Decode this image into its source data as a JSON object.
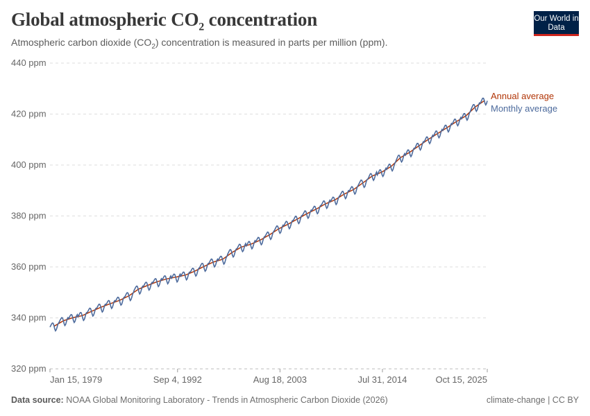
{
  "header": {
    "title_main": "Global atmospheric CO",
    "title_sub": "2",
    "title_end": " concentration",
    "subtitle_a": "Atmospheric carbon dioxide (CO",
    "subtitle_sub": "2",
    "subtitle_b": ") concentration is measured in parts per million (ppm).",
    "logo": "Our World in Data"
  },
  "footer": {
    "source_label": "Data source:",
    "source_text": "NOAA Global Monitoring Laboratory - Trends in Atmospheric Carbon Dioxide (2026)",
    "license": "climate-change | CC BY"
  },
  "colors": {
    "annual": "#b13507",
    "monthly": "#4c6a9c",
    "grid": "#dddddd",
    "text": "#666666",
    "logo_bg": "#002147",
    "logo_accent": "#ce261e"
  },
  "chart_data": {
    "type": "line",
    "title": "Global atmospheric CO₂ concentration",
    "ylabel": "",
    "xlabel": "",
    "ylim": [
      320,
      440
    ],
    "yticks": [
      320,
      340,
      360,
      380,
      400,
      420,
      440
    ],
    "ytick_labels": [
      "320 ppm",
      "340 ppm",
      "360 ppm",
      "380 ppm",
      "400 ppm",
      "420 ppm",
      "440 ppm"
    ],
    "xlim": [
      "1979-01-15",
      "2025-10-15"
    ],
    "xticks": [
      {
        "date": "1979-01-15",
        "label": "Jan 15, 1979"
      },
      {
        "date": "1992-09-04",
        "label": "Sep 4, 1992"
      },
      {
        "date": "2003-08-18",
        "label": "Aug 18, 2003"
      },
      {
        "date": "2014-07-31",
        "label": "Jul 31, 2014"
      },
      {
        "date": "2025-10-15",
        "label": "Oct 15, 2025"
      }
    ],
    "grid": true,
    "legend": "right (line-end labels)",
    "series": [
      {
        "name": "Annual average",
        "color": "#b13507",
        "years": [
          1979,
          1980,
          1981,
          1982,
          1983,
          1984,
          1985,
          1986,
          1987,
          1988,
          1989,
          1990,
          1991,
          1992,
          1993,
          1994,
          1995,
          1996,
          1997,
          1998,
          1999,
          2000,
          2001,
          2002,
          2003,
          2004,
          2005,
          2006,
          2007,
          2008,
          2009,
          2010,
          2011,
          2012,
          2013,
          2014,
          2015,
          2016,
          2017,
          2018,
          2019,
          2020,
          2021,
          2022,
          2023,
          2024,
          2025
        ],
        "values": [
          336.8,
          338.9,
          340.1,
          340.9,
          342.6,
          344.2,
          345.6,
          346.9,
          348.7,
          351.3,
          352.8,
          354.2,
          355.3,
          356.0,
          356.8,
          358.3,
          360.2,
          361.9,
          363.0,
          365.7,
          367.8,
          368.9,
          370.5,
          372.6,
          375.0,
          376.8,
          378.8,
          380.9,
          382.7,
          384.8,
          386.3,
          388.6,
          390.4,
          393.0,
          395.7,
          397.2,
          399.4,
          402.9,
          405.0,
          407.6,
          410.1,
          412.4,
          414.7,
          417.1,
          419.3,
          422.8,
          425.3
        ]
      },
      {
        "name": "Monthly average",
        "color": "#4c6a9c",
        "monthly": [
          {
            "year": 1979,
            "values": [
              336.4,
              337.0,
              337.6,
              338.0,
              337.9,
              337.0,
              335.7,
              334.9,
              335.3,
              336.3,
              337.5,
              338.0
            ]
          },
          {
            "year": 1980,
            "values": [
              338.5,
              339.1,
              339.7,
              340.1,
              340.0,
              339.1,
              337.8,
              337.0,
              337.4,
              338.4,
              339.6,
              340.1
            ]
          },
          {
            "year": 1981,
            "values": [
              339.7,
              340.3,
              340.9,
              341.3,
              341.2,
              340.3,
              339.0,
              338.2,
              338.6,
              339.6,
              340.8,
              341.3
            ]
          },
          {
            "year": 1982,
            "values": [
              340.5,
              341.1,
              341.7,
              342.1,
              342.0,
              341.1,
              339.8,
              339.0,
              339.4,
              340.4,
              341.6,
              342.1
            ]
          },
          {
            "year": 1983,
            "values": [
              342.2,
              342.8,
              343.4,
              343.8,
              343.7,
              342.8,
              341.5,
              340.7,
              341.1,
              342.1,
              343.3,
              343.8
            ]
          },
          {
            "year": 1984,
            "values": [
              343.8,
              344.4,
              345.0,
              345.4,
              345.3,
              344.4,
              343.1,
              342.3,
              342.7,
              343.7,
              344.9,
              345.4
            ]
          },
          {
            "year": 1985,
            "values": [
              345.2,
              345.8,
              346.4,
              346.8,
              346.7,
              345.8,
              344.5,
              343.7,
              344.1,
              345.1,
              346.3,
              346.8
            ]
          },
          {
            "year": 1986,
            "values": [
              346.5,
              347.1,
              347.7,
              348.1,
              348.0,
              347.1,
              345.8,
              345.0,
              345.4,
              346.4,
              347.6,
              348.1
            ]
          },
          {
            "year": 1987,
            "values": [
              348.3,
              348.9,
              349.5,
              349.9,
              349.8,
              348.9,
              347.6,
              346.8,
              347.2,
              348.2,
              349.4,
              349.9
            ]
          },
          {
            "year": 1988,
            "values": [
              350.9,
              351.5,
              352.1,
              352.5,
              352.4,
              351.5,
              350.2,
              349.4,
              349.8,
              350.8,
              352.0,
              352.5
            ]
          },
          {
            "year": 1989,
            "values": [
              352.4,
              353.0,
              353.6,
              354.0,
              353.9,
              353.0,
              351.7,
              350.9,
              351.3,
              352.3,
              353.5,
              354.0
            ]
          },
          {
            "year": 1990,
            "values": [
              353.8,
              354.4,
              355.0,
              355.4,
              355.3,
              354.4,
              353.1,
              352.3,
              352.7,
              353.7,
              354.9,
              355.4
            ]
          },
          {
            "year": 1991,
            "values": [
              354.9,
              355.5,
              356.1,
              356.5,
              356.4,
              355.5,
              354.2,
              353.4,
              353.8,
              354.8,
              356.0,
              356.5
            ]
          },
          {
            "year": 1992,
            "values": [
              355.6,
              356.2,
              356.8,
              357.2,
              357.1,
              356.2,
              354.9,
              354.1,
              354.5,
              355.5,
              356.7,
              357.2
            ]
          },
          {
            "year": 1993,
            "values": [
              356.4,
              357.0,
              357.6,
              358.0,
              357.9,
              357.0,
              355.7,
              354.9,
              355.3,
              356.3,
              357.5,
              358.0
            ]
          },
          {
            "year": 1994,
            "values": [
              357.9,
              358.5,
              359.1,
              359.5,
              359.4,
              358.5,
              357.2,
              356.4,
              356.8,
              357.8,
              359.0,
              359.5
            ]
          },
          {
            "year": 1995,
            "values": [
              359.8,
              360.4,
              361.0,
              361.4,
              361.3,
              360.4,
              359.1,
              358.3,
              358.7,
              359.7,
              360.9,
              361.4
            ]
          },
          {
            "year": 1996,
            "values": [
              361.5,
              362.1,
              362.7,
              363.1,
              363.0,
              362.1,
              360.8,
              360.0,
              360.4,
              361.4,
              362.6,
              363.1
            ]
          },
          {
            "year": 1997,
            "values": [
              362.6,
              363.2,
              363.8,
              364.2,
              364.1,
              363.2,
              361.9,
              361.1,
              361.5,
              362.5,
              363.7,
              364.2
            ]
          },
          {
            "year": 1998,
            "values": [
              365.1,
              365.7,
              366.3,
              366.8,
              366.7,
              365.9,
              364.6,
              363.9,
              364.3,
              365.4,
              366.5,
              367.1
            ]
          },
          {
            "year": 1999,
            "values": [
              367.2,
              367.8,
              368.4,
              368.9,
              368.8,
              368.0,
              366.7,
              366.0,
              366.4,
              367.5,
              368.6,
              369.2
            ]
          },
          {
            "year": 2000,
            "values": [
              368.3,
              368.9,
              369.5,
              370.0,
              369.9,
              369.1,
              367.8,
              367.1,
              367.5,
              368.6,
              369.7,
              370.3
            ]
          },
          {
            "year": 2001,
            "values": [
              369.9,
              370.5,
              371.1,
              371.6,
              371.5,
              370.7,
              369.4,
              368.7,
              369.1,
              370.2,
              371.3,
              371.9
            ]
          },
          {
            "year": 2002,
            "values": [
              372.0,
              372.6,
              373.2,
              373.7,
              373.6,
              372.8,
              371.5,
              370.8,
              371.2,
              372.3,
              373.4,
              374.0
            ]
          },
          {
            "year": 2003,
            "values": [
              374.4,
              375.0,
              375.6,
              376.1,
              376.0,
              375.2,
              373.9,
              373.2,
              373.6,
              374.7,
              375.8,
              376.4
            ]
          },
          {
            "year": 2004,
            "values": [
              376.2,
              376.8,
              377.4,
              377.9,
              377.8,
              377.0,
              375.7,
              375.0,
              375.4,
              376.5,
              377.6,
              378.2
            ]
          },
          {
            "year": 2005,
            "values": [
              378.2,
              378.8,
              379.4,
              379.9,
              379.8,
              379.0,
              377.7,
              377.0,
              377.4,
              378.5,
              379.6,
              380.2
            ]
          },
          {
            "year": 2006,
            "values": [
              380.3,
              380.9,
              381.5,
              382.0,
              381.9,
              381.1,
              379.8,
              379.1,
              379.5,
              380.6,
              381.7,
              382.3
            ]
          },
          {
            "year": 2007,
            "values": [
              382.1,
              382.7,
              383.3,
              383.8,
              383.7,
              382.9,
              381.6,
              380.9,
              381.3,
              382.4,
              383.5,
              384.1
            ]
          },
          {
            "year": 2008,
            "values": [
              384.2,
              384.8,
              385.4,
              385.9,
              385.8,
              385.0,
              383.7,
              383.0,
              383.4,
              384.5,
              385.6,
              386.2
            ]
          },
          {
            "year": 2009,
            "values": [
              385.7,
              386.3,
              386.9,
              387.4,
              387.3,
              386.5,
              385.2,
              384.5,
              384.9,
              386.0,
              387.1,
              387.7
            ]
          },
          {
            "year": 2010,
            "values": [
              388.0,
              388.6,
              389.2,
              389.7,
              389.6,
              388.8,
              387.5,
              386.8,
              387.2,
              388.3,
              389.4,
              390.0
            ]
          },
          {
            "year": 2011,
            "values": [
              389.8,
              390.4,
              391.0,
              391.5,
              391.4,
              390.6,
              389.3,
              388.6,
              389.0,
              390.1,
              391.2,
              391.8
            ]
          },
          {
            "year": 2012,
            "values": [
              392.4,
              393.0,
              393.6,
              394.1,
              394.0,
              393.2,
              391.9,
              391.2,
              391.6,
              392.7,
              393.8,
              394.4
            ]
          },
          {
            "year": 2013,
            "values": [
              394.6,
              395.3,
              396.0,
              396.6,
              396.6,
              395.9,
              394.6,
              394.0,
              394.5,
              395.6,
              396.7,
              397.3
            ]
          },
          {
            "year": 2014,
            "values": [
              396.1,
              396.8,
              397.5,
              398.1,
              398.1,
              397.4,
              396.1,
              395.5,
              396.0,
              397.1,
              398.2,
              398.8
            ]
          },
          {
            "year": 2015,
            "values": [
              398.3,
              399.0,
              399.7,
              400.3,
              400.3,
              399.6,
              398.3,
              397.7,
              398.2,
              399.3,
              400.4,
              401.0
            ]
          },
          {
            "year": 2016,
            "values": [
              401.8,
              402.5,
              403.2,
              403.8,
              403.8,
              403.1,
              401.8,
              401.2,
              401.7,
              402.8,
              403.9,
              404.5
            ]
          },
          {
            "year": 2017,
            "values": [
              403.9,
              404.6,
              405.3,
              405.9,
              405.9,
              405.2,
              403.9,
              403.3,
              403.8,
              404.9,
              406.0,
              406.6
            ]
          },
          {
            "year": 2018,
            "values": [
              406.5,
              407.2,
              407.9,
              408.5,
              408.5,
              407.8,
              406.5,
              405.9,
              406.4,
              407.5,
              408.6,
              409.2
            ]
          },
          {
            "year": 2019,
            "values": [
              409.0,
              409.7,
              410.4,
              411.0,
              411.0,
              410.3,
              409.0,
              408.4,
              408.9,
              410.0,
              411.1,
              411.7
            ]
          },
          {
            "year": 2020,
            "values": [
              411.3,
              412.0,
              412.7,
              413.3,
              413.3,
              412.6,
              411.3,
              410.7,
              411.2,
              412.3,
              413.4,
              414.0
            ]
          },
          {
            "year": 2021,
            "values": [
              413.6,
              414.3,
              415.0,
              415.6,
              415.6,
              414.9,
              413.6,
              413.0,
              413.5,
              414.6,
              415.7,
              416.3
            ]
          },
          {
            "year": 2022,
            "values": [
              416.0,
              416.7,
              417.4,
              418.0,
              418.0,
              417.3,
              416.0,
              415.4,
              415.9,
              417.0,
              418.1,
              418.7
            ]
          },
          {
            "year": 2023,
            "values": [
              418.2,
              418.9,
              419.6,
              420.2,
              420.2,
              419.5,
              418.2,
              417.6,
              418.1,
              419.2,
              420.3,
              420.9
            ]
          },
          {
            "year": 2024,
            "values": [
              421.7,
              422.4,
              423.1,
              423.7,
              423.7,
              423.0,
              421.7,
              421.1,
              421.6,
              422.7,
              423.8,
              424.4
            ]
          },
          {
            "year": 2025,
            "values": [
              424.2,
              424.9,
              425.6,
              426.2,
              426.2,
              425.5,
              424.2,
              423.6,
              424.1,
              425.2
            ]
          }
        ]
      }
    ]
  }
}
